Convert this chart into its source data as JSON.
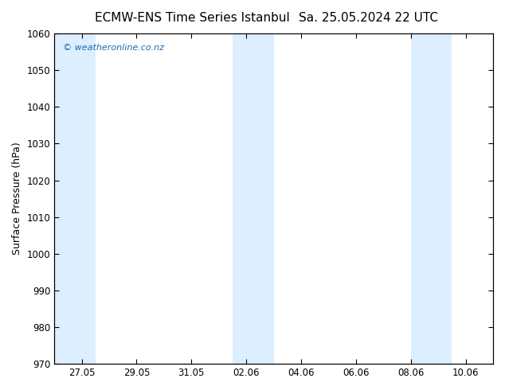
{
  "title_left": "ECMW-ENS Time Series Istanbul",
  "title_right": "Sa. 25.05.2024 22 UTC",
  "ylabel": "Surface Pressure (hPa)",
  "ylim": [
    970,
    1060
  ],
  "yticks": [
    970,
    980,
    990,
    1000,
    1010,
    1020,
    1030,
    1040,
    1050,
    1060
  ],
  "xtick_labels": [
    "27.05",
    "29.05",
    "31.05",
    "02.06",
    "04.06",
    "06.06",
    "08.06",
    "10.06"
  ],
  "xtick_days": [
    1,
    3,
    5,
    7,
    9,
    11,
    13,
    15
  ],
  "xlim": [
    0,
    16
  ],
  "bands": [
    {
      "start": 0.0,
      "end": 1.5
    },
    {
      "start": 6.5,
      "end": 8.0
    },
    {
      "start": 13.0,
      "end": 14.5
    }
  ],
  "band_color": "#ddeeff",
  "background_color": "#ffffff",
  "border_color": "#000000",
  "watermark_text": "© weatheronline.co.nz",
  "watermark_color": "#1a6cb5",
  "title_color": "#000000",
  "title_fontsize": 11,
  "tick_fontsize": 8.5,
  "ylabel_fontsize": 9
}
